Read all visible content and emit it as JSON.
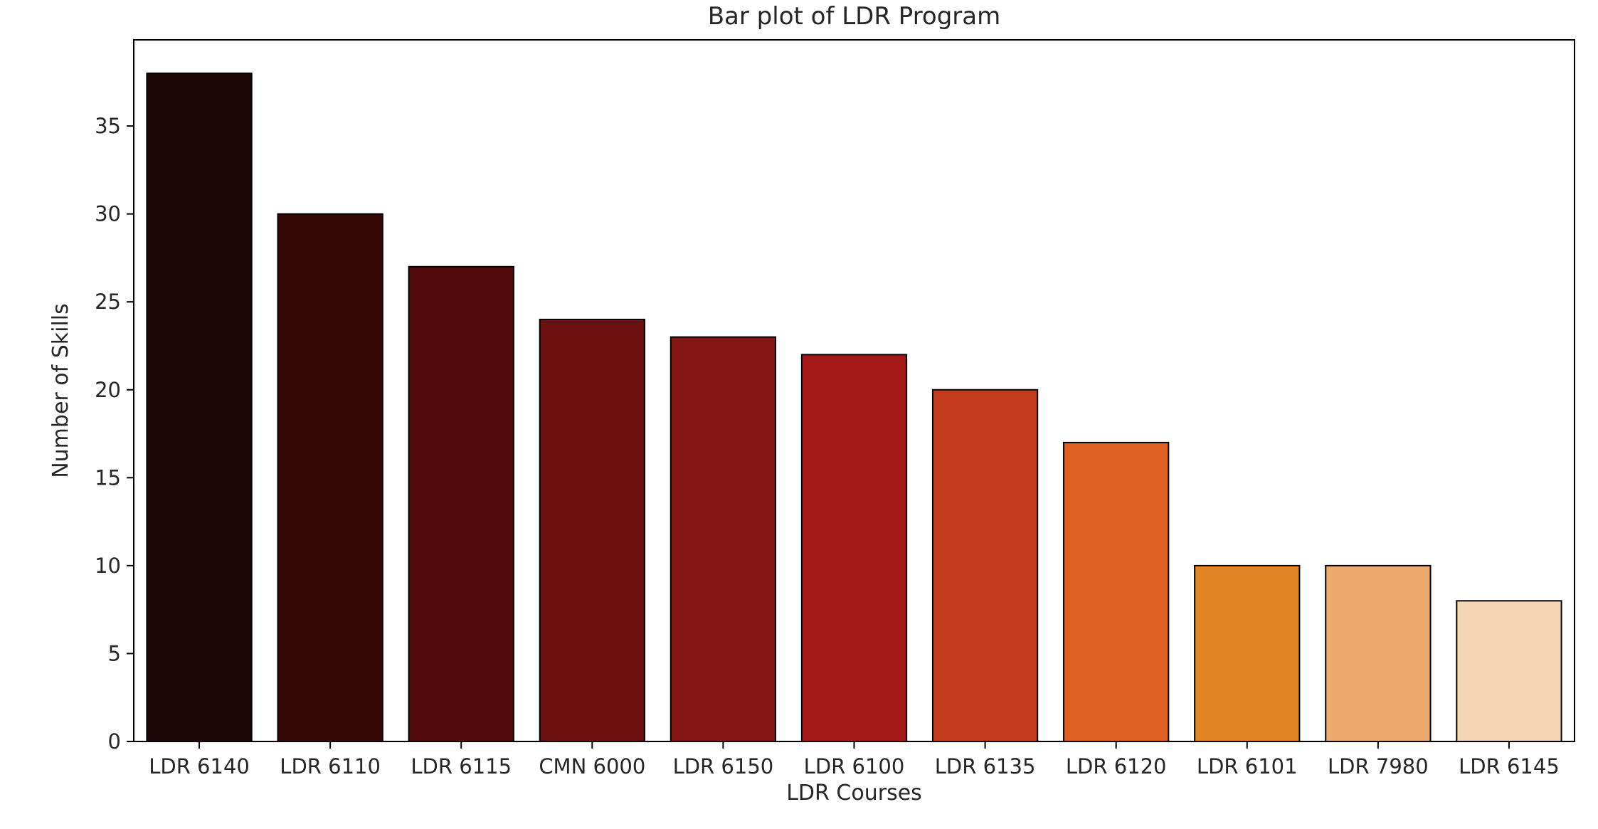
{
  "chart_data": {
    "type": "bar",
    "title": "Bar plot of LDR Program",
    "xlabel": "LDR Courses",
    "ylabel": "Number of Skills",
    "categories": [
      "LDR 6140",
      "LDR 6110",
      "LDR 6115",
      "CMN 6000",
      "LDR 6150",
      "LDR 6100",
      "LDR 6135",
      "LDR 6120",
      "LDR 6101",
      "LDR 7980",
      "LDR 6145"
    ],
    "values": [
      38,
      30,
      27,
      24,
      23,
      22,
      20,
      17,
      10,
      10,
      8
    ],
    "colors": [
      "#1c0503",
      "#360807",
      "#510b0b",
      "#6b1010",
      "#861515",
      "#a41818",
      "#c43a1d",
      "#e06122",
      "#e28325",
      "#ecab6d",
      "#f5d5b3"
    ],
    "ylim": [
      0,
      39.9
    ],
    "yticks": [
      0,
      5,
      10,
      15,
      20,
      25,
      30,
      35
    ],
    "grid": false,
    "legend": "none"
  }
}
